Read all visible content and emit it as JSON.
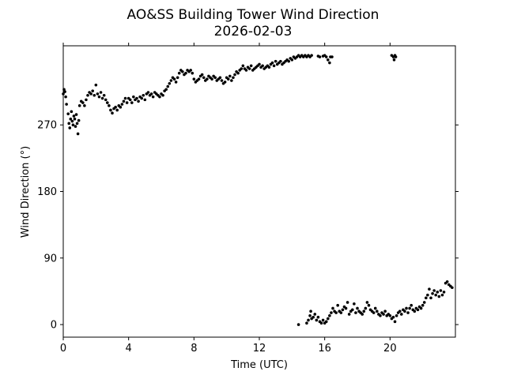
{
  "chart_data": {
    "type": "scatter",
    "title": "AO&SS Building Tower Wind Direction",
    "subtitle": "2026-02-03",
    "xlabel": "Time (UTC)",
    "ylabel": "Wind Direction (°)",
    "xlim": [
      0,
      24
    ],
    "ylim": [
      -17,
      377
    ],
    "x_ticks": [
      0,
      4,
      8,
      12,
      16,
      20
    ],
    "y_ticks": [
      0,
      90,
      180,
      270
    ],
    "grid": false,
    "legend": "none",
    "marker_color": "#000000",
    "series": [
      {
        "points": [
          [
            0.0,
            312
          ],
          [
            0.05,
            318
          ],
          [
            0.1,
            315
          ],
          [
            0.15,
            308
          ],
          [
            0.2,
            298
          ],
          [
            0.3,
            285
          ],
          [
            0.35,
            272
          ],
          [
            0.4,
            266
          ],
          [
            0.45,
            278
          ],
          [
            0.5,
            288
          ],
          [
            0.55,
            275
          ],
          [
            0.6,
            270
          ],
          [
            0.65,
            282
          ],
          [
            0.7,
            278
          ],
          [
            0.75,
            268
          ],
          [
            0.8,
            284
          ],
          [
            0.85,
            272
          ],
          [
            0.9,
            258
          ],
          [
            0.95,
            276
          ],
          [
            1.0,
            296
          ],
          [
            1.1,
            302
          ],
          [
            1.2,
            300
          ],
          [
            1.3,
            296
          ],
          [
            1.4,
            304
          ],
          [
            1.5,
            310
          ],
          [
            1.6,
            314
          ],
          [
            1.7,
            312
          ],
          [
            1.8,
            316
          ],
          [
            1.9,
            310
          ],
          [
            2.0,
            324
          ],
          [
            2.1,
            312
          ],
          [
            2.2,
            308
          ],
          [
            2.3,
            314
          ],
          [
            2.4,
            306
          ],
          [
            2.5,
            310
          ],
          [
            2.6,
            304
          ],
          [
            2.7,
            300
          ],
          [
            2.8,
            296
          ],
          [
            2.9,
            290
          ],
          [
            3.0,
            286
          ],
          [
            3.1,
            292
          ],
          [
            3.2,
            294
          ],
          [
            3.3,
            290
          ],
          [
            3.4,
            296
          ],
          [
            3.5,
            294
          ],
          [
            3.6,
            298
          ],
          [
            3.7,
            302
          ],
          [
            3.8,
            306
          ],
          [
            3.9,
            300
          ],
          [
            4.0,
            306
          ],
          [
            4.1,
            304
          ],
          [
            4.2,
            300
          ],
          [
            4.3,
            308
          ],
          [
            4.4,
            304
          ],
          [
            4.5,
            306
          ],
          [
            4.6,
            302
          ],
          [
            4.7,
            308
          ],
          [
            4.8,
            306
          ],
          [
            4.9,
            310
          ],
          [
            5.0,
            304
          ],
          [
            5.1,
            312
          ],
          [
            5.2,
            314
          ],
          [
            5.3,
            310
          ],
          [
            5.4,
            312
          ],
          [
            5.5,
            308
          ],
          [
            5.6,
            314
          ],
          [
            5.7,
            312
          ],
          [
            5.8,
            310
          ],
          [
            5.9,
            308
          ],
          [
            6.0,
            312
          ],
          [
            6.1,
            310
          ],
          [
            6.2,
            316
          ],
          [
            6.3,
            318
          ],
          [
            6.4,
            322
          ],
          [
            6.5,
            326
          ],
          [
            6.6,
            330
          ],
          [
            6.7,
            334
          ],
          [
            6.8,
            332
          ],
          [
            6.9,
            328
          ],
          [
            7.0,
            334
          ],
          [
            7.1,
            340
          ],
          [
            7.2,
            344
          ],
          [
            7.3,
            342
          ],
          [
            7.4,
            338
          ],
          [
            7.5,
            340
          ],
          [
            7.6,
            344
          ],
          [
            7.7,
            342
          ],
          [
            7.8,
            344
          ],
          [
            7.9,
            340
          ],
          [
            8.0,
            332
          ],
          [
            8.1,
            328
          ],
          [
            8.2,
            330
          ],
          [
            8.3,
            332
          ],
          [
            8.4,
            336
          ],
          [
            8.5,
            338
          ],
          [
            8.6,
            334
          ],
          [
            8.7,
            330
          ],
          [
            8.8,
            332
          ],
          [
            8.9,
            336
          ],
          [
            9.0,
            334
          ],
          [
            9.1,
            332
          ],
          [
            9.2,
            336
          ],
          [
            9.3,
            334
          ],
          [
            9.4,
            330
          ],
          [
            9.5,
            332
          ],
          [
            9.6,
            334
          ],
          [
            9.7,
            330
          ],
          [
            9.8,
            326
          ],
          [
            9.9,
            328
          ],
          [
            10.0,
            334
          ],
          [
            10.1,
            332
          ],
          [
            10.2,
            336
          ],
          [
            10.3,
            330
          ],
          [
            10.4,
            334
          ],
          [
            10.5,
            338
          ],
          [
            10.6,
            342
          ],
          [
            10.7,
            340
          ],
          [
            10.8,
            344
          ],
          [
            10.9,
            346
          ],
          [
            11.0,
            350
          ],
          [
            11.1,
            346
          ],
          [
            11.2,
            344
          ],
          [
            11.3,
            348
          ],
          [
            11.4,
            346
          ],
          [
            11.5,
            350
          ],
          [
            11.6,
            344
          ],
          [
            11.7,
            346
          ],
          [
            11.8,
            348
          ],
          [
            11.9,
            350
          ],
          [
            12.0,
            352
          ],
          [
            12.1,
            348
          ],
          [
            12.2,
            350
          ],
          [
            12.3,
            346
          ],
          [
            12.4,
            348
          ],
          [
            12.5,
            350
          ],
          [
            12.6,
            348
          ],
          [
            12.7,
            352
          ],
          [
            12.8,
            354
          ],
          [
            12.9,
            350
          ],
          [
            13.0,
            356
          ],
          [
            13.1,
            352
          ],
          [
            13.2,
            354
          ],
          [
            13.3,
            356
          ],
          [
            13.4,
            352
          ],
          [
            13.5,
            354
          ],
          [
            13.6,
            356
          ],
          [
            13.7,
            358
          ],
          [
            13.8,
            356
          ],
          [
            13.9,
            360
          ],
          [
            14.0,
            358
          ],
          [
            14.1,
            362
          ],
          [
            14.2,
            360
          ],
          [
            14.3,
            362
          ],
          [
            14.4,
            364
          ],
          [
            14.5,
            362
          ],
          [
            14.6,
            364
          ],
          [
            14.7,
            362
          ],
          [
            14.8,
            364
          ],
          [
            14.9,
            362
          ],
          [
            15.0,
            364
          ],
          [
            15.1,
            362
          ],
          [
            15.2,
            364
          ],
          [
            15.6,
            363
          ],
          [
            15.7,
            362
          ],
          [
            15.9,
            363
          ],
          [
            16.0,
            364
          ],
          [
            16.1,
            362
          ],
          [
            16.2,
            358
          ],
          [
            16.3,
            354
          ],
          [
            16.35,
            362
          ],
          [
            16.45,
            362
          ],
          [
            20.1,
            364
          ],
          [
            20.2,
            362
          ],
          [
            20.25,
            358
          ],
          [
            20.3,
            364
          ],
          [
            20.35,
            362
          ],
          [
            14.4,
            0
          ],
          [
            14.9,
            2
          ],
          [
            15.0,
            6
          ],
          [
            15.1,
            12
          ],
          [
            15.15,
            18
          ],
          [
            15.2,
            8
          ],
          [
            15.3,
            10
          ],
          [
            15.4,
            14
          ],
          [
            15.5,
            6
          ],
          [
            15.6,
            10
          ],
          [
            15.7,
            4
          ],
          [
            15.8,
            2
          ],
          [
            15.9,
            6
          ],
          [
            16.0,
            2
          ],
          [
            16.1,
            4
          ],
          [
            16.2,
            8
          ],
          [
            16.3,
            12
          ],
          [
            16.4,
            16
          ],
          [
            16.5,
            22
          ],
          [
            16.6,
            18
          ],
          [
            16.7,
            16
          ],
          [
            16.8,
            26
          ],
          [
            16.9,
            18
          ],
          [
            17.0,
            16
          ],
          [
            17.1,
            20
          ],
          [
            17.2,
            24
          ],
          [
            17.3,
            22
          ],
          [
            17.4,
            30
          ],
          [
            17.5,
            14
          ],
          [
            17.6,
            18
          ],
          [
            17.7,
            20
          ],
          [
            17.8,
            28
          ],
          [
            17.9,
            16
          ],
          [
            18.0,
            22
          ],
          [
            18.1,
            18
          ],
          [
            18.2,
            16
          ],
          [
            18.3,
            14
          ],
          [
            18.4,
            18
          ],
          [
            18.5,
            22
          ],
          [
            18.6,
            30
          ],
          [
            18.7,
            26
          ],
          [
            18.8,
            20
          ],
          [
            18.9,
            18
          ],
          [
            19.0,
            16
          ],
          [
            19.1,
            22
          ],
          [
            19.2,
            18
          ],
          [
            19.3,
            14
          ],
          [
            19.4,
            12
          ],
          [
            19.5,
            16
          ],
          [
            19.6,
            14
          ],
          [
            19.7,
            18
          ],
          [
            19.8,
            12
          ],
          [
            19.9,
            14
          ],
          [
            20.0,
            12
          ],
          [
            20.1,
            8
          ],
          [
            20.2,
            10
          ],
          [
            20.3,
            4
          ],
          [
            20.4,
            12
          ],
          [
            20.5,
            16
          ],
          [
            20.6,
            18
          ],
          [
            20.7,
            14
          ],
          [
            20.8,
            20
          ],
          [
            20.9,
            18
          ],
          [
            21.0,
            22
          ],
          [
            21.1,
            16
          ],
          [
            21.2,
            22
          ],
          [
            21.3,
            26
          ],
          [
            21.4,
            20
          ],
          [
            21.5,
            18
          ],
          [
            21.6,
            22
          ],
          [
            21.7,
            20
          ],
          [
            21.8,
            24
          ],
          [
            21.9,
            22
          ],
          [
            22.0,
            26
          ],
          [
            22.1,
            30
          ],
          [
            22.2,
            36
          ],
          [
            22.3,
            40
          ],
          [
            22.4,
            48
          ],
          [
            22.5,
            36
          ],
          [
            22.6,
            42
          ],
          [
            22.7,
            46
          ],
          [
            22.8,
            40
          ],
          [
            22.9,
            44
          ],
          [
            23.0,
            38
          ],
          [
            23.1,
            46
          ],
          [
            23.2,
            40
          ],
          [
            23.3,
            44
          ],
          [
            23.4,
            56
          ],
          [
            23.5,
            58
          ],
          [
            23.6,
            54
          ],
          [
            23.7,
            52
          ],
          [
            23.8,
            50
          ]
        ]
      }
    ]
  }
}
